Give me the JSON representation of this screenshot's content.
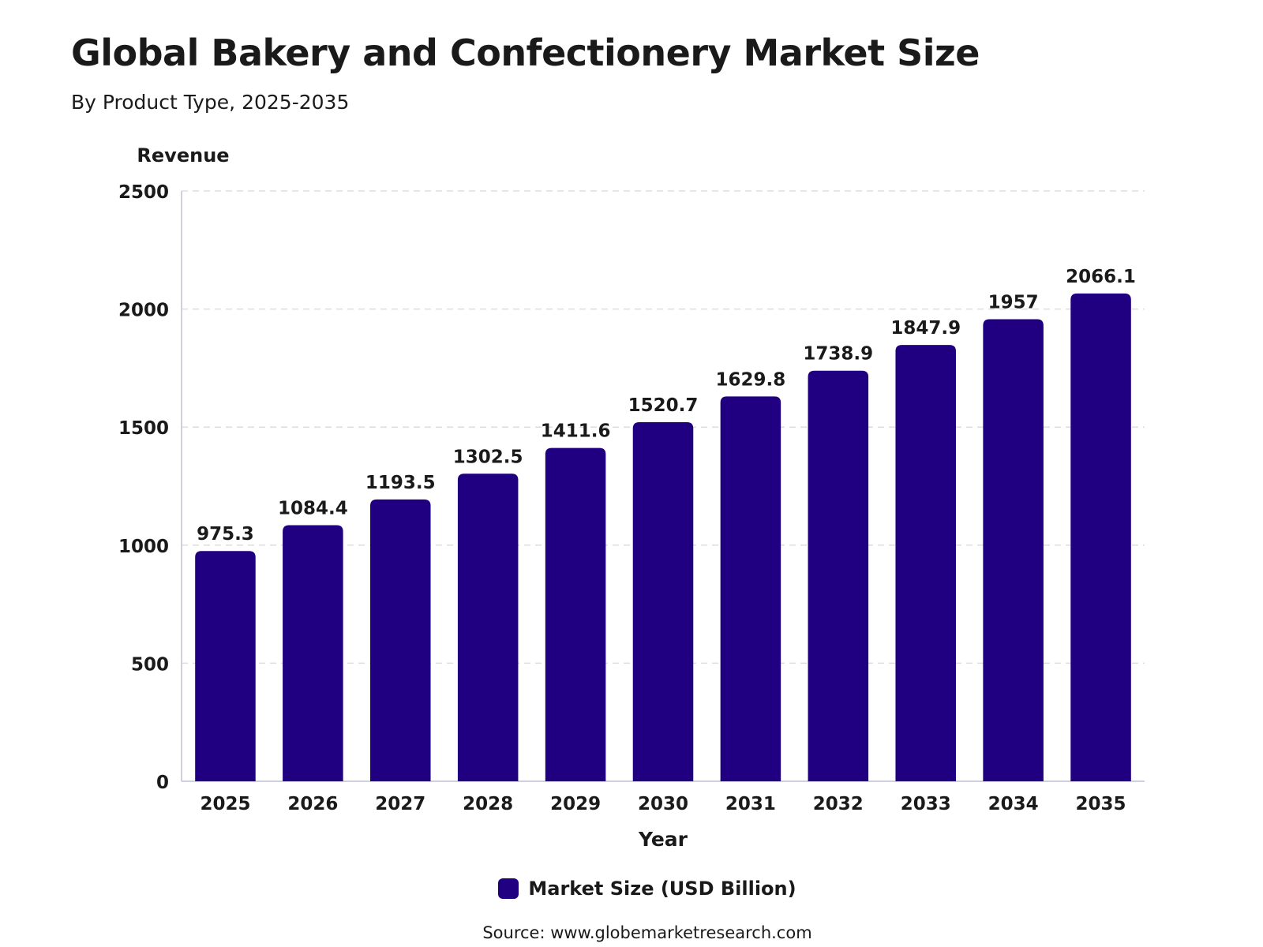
{
  "chart_data": {
    "type": "bar",
    "title": "Global Bakery and Confectionery Market Size",
    "subtitle": "By Product Type, 2025-2035",
    "ylabel": "Revenue",
    "xlabel": "Year",
    "categories": [
      "2025",
      "2026",
      "2027",
      "2028",
      "2029",
      "2030",
      "2031",
      "2032",
      "2033",
      "2034",
      "2035"
    ],
    "series": [
      {
        "name": "Market Size (USD Billion)",
        "values": [
          975.3,
          1084.4,
          1193.5,
          1302.5,
          1411.6,
          1520.7,
          1629.8,
          1738.9,
          1847.9,
          1957,
          2066.1
        ],
        "color": "#200080"
      }
    ],
    "ylim": [
      0,
      2500
    ],
    "yticks": [
      0,
      500,
      1000,
      1500,
      2000,
      2500
    ],
    "grid": true,
    "legend_position": "bottom-center",
    "data_labels": true
  },
  "source": {
    "label": "Source:",
    "url": "www.globemarketresearch.com"
  },
  "colors": {
    "bar": "#200080",
    "gridline": "#dddddd",
    "axis": "#cfcfe0",
    "text": "#1a1a1a"
  }
}
